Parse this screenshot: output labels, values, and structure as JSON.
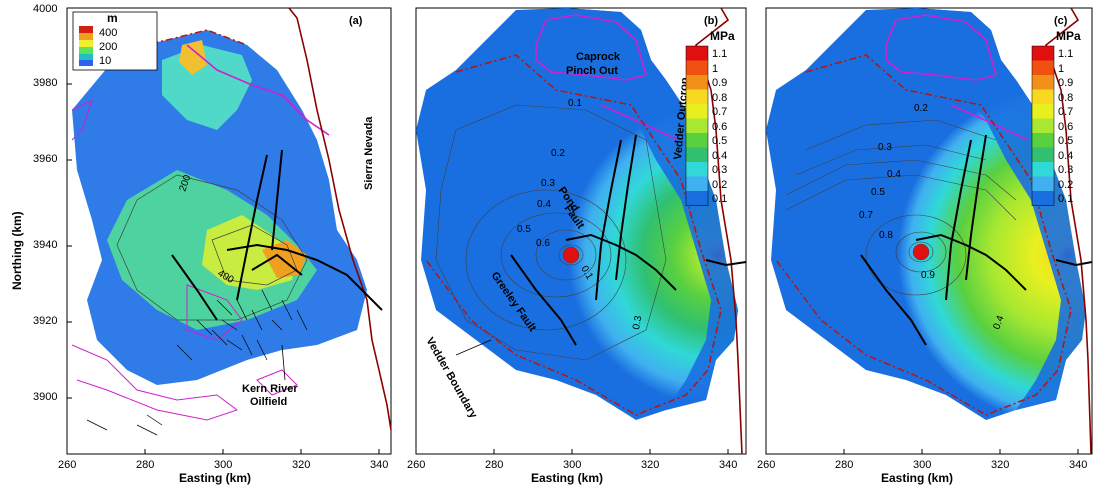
{
  "panels": {
    "a": {
      "label": "(a)",
      "xlabel": "Easting (km)",
      "ylabel": "Northing (km)",
      "xticks": [
        "260",
        "280",
        "300",
        "320",
        "340"
      ],
      "yticks": [
        "4000",
        "3980",
        "3960",
        "3940",
        "3920",
        "3900"
      ],
      "legend": {
        "title": "m",
        "labels": [
          "400",
          "200",
          "10"
        ],
        "colors": [
          "#d02010",
          "#f0a020",
          "#f0f030",
          "#60e060",
          "#20c0c0",
          "#3060f0"
        ]
      },
      "contour_labels": [
        "200",
        "400"
      ],
      "annotations": {
        "sierra": "Sierra Nevada",
        "kern_line1": "Kern River",
        "kern_line2": "Oilfield"
      }
    },
    "b": {
      "label": "(b)",
      "xlabel": "Easting (km)",
      "xticks": [
        "260",
        "280",
        "300",
        "320",
        "340"
      ],
      "legend": {
        "title": "MPa",
        "labels": [
          "1.1",
          "1",
          "0.9",
          "0.8",
          "0.7",
          "0.6",
          "0.5",
          "0.4",
          "0.3",
          "0.2",
          "0.1"
        ]
      },
      "contour_labels": [
        "0.1",
        "0.2",
        "0.3",
        "0.4",
        "0.5",
        "0.6",
        "0.1",
        "0.3"
      ],
      "annotations": {
        "caprock1": "Caprock",
        "caprock2": "Pinch Out",
        "vedder_outcrop": "Vedder Outcrop",
        "pond1": "Pond",
        "pond2": "Fault",
        "greeley": "Greeley Fault",
        "vedder_boundary": "Vedder Boundary"
      }
    },
    "c": {
      "label": "(c)",
      "xlabel": "Easting (km)",
      "xticks": [
        "260",
        "280",
        "300",
        "320",
        "340"
      ],
      "legend": {
        "title": "MPa",
        "labels": [
          "1.1",
          "1",
          "0.9",
          "0.8",
          "0.7",
          "0.6",
          "0.5",
          "0.4",
          "0.3",
          "0.2",
          "0.1"
        ]
      },
      "contour_labels": [
        "0.2",
        "0.3",
        "0.4",
        "0.5",
        "0.7",
        "0.8",
        "0.9",
        "0.4"
      ]
    }
  },
  "colors": {
    "mpa_scale": [
      "#e01010",
      "#f05010",
      "#f09018",
      "#f8d820",
      "#e8f020",
      "#a8e830",
      "#58d040",
      "#30c070",
      "#30d8d8",
      "#40b0f0",
      "#1a6fe0"
    ],
    "boundary": "#b01818",
    "outcrop_line": "#8b0000",
    "caprock_line": "#d020d0",
    "fault": "#000000"
  }
}
